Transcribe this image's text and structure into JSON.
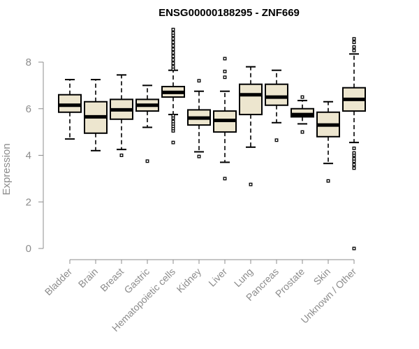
{
  "chart_data": {
    "type": "box",
    "title": "ENSG00000188295 - ZNF669",
    "xlabel": "",
    "ylabel": "Expression",
    "ylim": [
      0,
      9.5
    ],
    "yticks": [
      0,
      2,
      4,
      6,
      8
    ],
    "grid": false,
    "colors": {
      "box_fill": "#ede6cf",
      "box_stroke": "#000000",
      "axis": "#8c8c8c"
    },
    "categories": [
      "Bladder",
      "Brain",
      "Breast",
      "Gastric",
      "Hematopoietic cells",
      "Kidney",
      "Liver",
      "Lung",
      "Pancreas",
      "Prostate",
      "Skin",
      "Unknown / Other"
    ],
    "boxes": [
      {
        "category": "Bladder",
        "whisker_low": 4.7,
        "q1": 5.85,
        "median": 6.15,
        "q3": 6.6,
        "whisker_high": 7.25,
        "outliers": []
      },
      {
        "category": "Brain",
        "whisker_low": 4.2,
        "q1": 4.95,
        "median": 5.65,
        "q3": 6.3,
        "whisker_high": 7.25,
        "outliers": []
      },
      {
        "category": "Breast",
        "whisker_low": 4.25,
        "q1": 5.55,
        "median": 5.95,
        "q3": 6.4,
        "whisker_high": 7.45,
        "outliers": [
          4.0
        ]
      },
      {
        "category": "Gastric",
        "whisker_low": 5.2,
        "q1": 5.9,
        "median": 6.15,
        "q3": 6.4,
        "whisker_high": 7.0,
        "outliers": [
          3.75
        ]
      },
      {
        "category": "Hematopoietic cells",
        "whisker_low": 5.75,
        "q1": 6.5,
        "median": 6.7,
        "q3": 6.95,
        "whisker_high": 7.65,
        "outliers": [
          4.55,
          5.05,
          5.15,
          5.25,
          5.35,
          5.45,
          5.6,
          5.7,
          7.7,
          7.8,
          7.95,
          8.1,
          8.25,
          8.4,
          8.55,
          8.7,
          8.85,
          9.0,
          9.15,
          9.25,
          9.4
        ]
      },
      {
        "category": "Kidney",
        "whisker_low": 4.15,
        "q1": 5.3,
        "median": 5.6,
        "q3": 5.95,
        "whisker_high": 6.75,
        "outliers": [
          3.95,
          7.2
        ]
      },
      {
        "category": "Liver",
        "whisker_low": 3.7,
        "q1": 5.0,
        "median": 5.5,
        "q3": 5.9,
        "whisker_high": 6.75,
        "outliers": [
          3.0,
          7.35,
          7.6,
          8.15
        ]
      },
      {
        "category": "Lung",
        "whisker_low": 4.35,
        "q1": 5.75,
        "median": 6.6,
        "q3": 7.05,
        "whisker_high": 7.8,
        "outliers": [
          2.75
        ]
      },
      {
        "category": "Pancreas",
        "whisker_low": 5.4,
        "q1": 6.15,
        "median": 6.5,
        "q3": 7.05,
        "whisker_high": 7.65,
        "outliers": [
          4.65
        ]
      },
      {
        "category": "Prostate",
        "whisker_low": 5.35,
        "q1": 5.65,
        "median": 5.75,
        "q3": 6.0,
        "whisker_high": 6.35,
        "outliers": [
          5.0,
          6.5
        ]
      },
      {
        "category": "Skin",
        "whisker_low": 3.65,
        "q1": 4.8,
        "median": 5.3,
        "q3": 5.85,
        "whisker_high": 6.3,
        "outliers": [
          2.9
        ]
      },
      {
        "category": "Unknown / Other",
        "whisker_low": 4.55,
        "q1": 5.9,
        "median": 6.4,
        "q3": 6.9,
        "whisker_high": 8.35,
        "outliers": [
          0.0,
          3.45,
          3.6,
          3.75,
          3.85,
          4.0,
          4.1,
          4.3,
          8.5,
          8.65,
          8.85,
          9.0
        ]
      }
    ]
  }
}
